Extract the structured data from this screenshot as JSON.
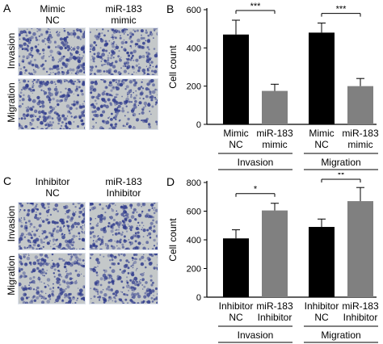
{
  "panels": {
    "a": {
      "letter": "A",
      "cols": [
        "Mimic\nNC",
        "miR-183\nmimic"
      ],
      "rows": [
        "Invasion",
        "Migration"
      ]
    },
    "c": {
      "letter": "C",
      "cols": [
        "Inhibitor\nNC",
        "miR-183\nInhibitor"
      ],
      "rows": [
        "Invasion",
        "Migration"
      ]
    }
  },
  "colors": {
    "black_bar": "#000000",
    "grey_bar": "#808080",
    "micro_bg": "#c4c8c9",
    "micro_cell": "#2e3a8c"
  },
  "chart_data": [
    {
      "type": "bar",
      "letter": "B",
      "ylabel": "Cell count",
      "ylim": [
        0,
        600
      ],
      "yticks": [
        0,
        200,
        400,
        600
      ],
      "groups": [
        "Invasion",
        "Migration"
      ],
      "categories": [
        "Mimic\nNC",
        "miR-183\nmimic",
        "Mimic\nNC",
        "miR-183\nmimic"
      ],
      "values": [
        470,
        175,
        480,
        200
      ],
      "errors": [
        75,
        35,
        50,
        40
      ],
      "bar_colors": [
        "#000000",
        "#808080",
        "#000000",
        "#808080"
      ],
      "significance": [
        {
          "pair": [
            0,
            1
          ],
          "label": "***"
        },
        {
          "pair": [
            2,
            3
          ],
          "label": "***"
        }
      ]
    },
    {
      "type": "bar",
      "letter": "D",
      "ylabel": "Cell count",
      "ylim": [
        0,
        800
      ],
      "yticks": [
        0,
        200,
        400,
        600,
        800
      ],
      "groups": [
        "Invasion",
        "Migration"
      ],
      "categories": [
        "Inhibitor\nNC",
        "miR-183\nInhibitor",
        "Inhibitor\nNC",
        "miR-183\nInhibitor"
      ],
      "values": [
        410,
        605,
        490,
        670
      ],
      "errors": [
        60,
        50,
        55,
        95
      ],
      "bar_colors": [
        "#000000",
        "#808080",
        "#000000",
        "#808080"
      ],
      "significance": [
        {
          "pair": [
            0,
            1
          ],
          "label": "*"
        },
        {
          "pair": [
            2,
            3
          ],
          "label": "**"
        }
      ]
    }
  ]
}
